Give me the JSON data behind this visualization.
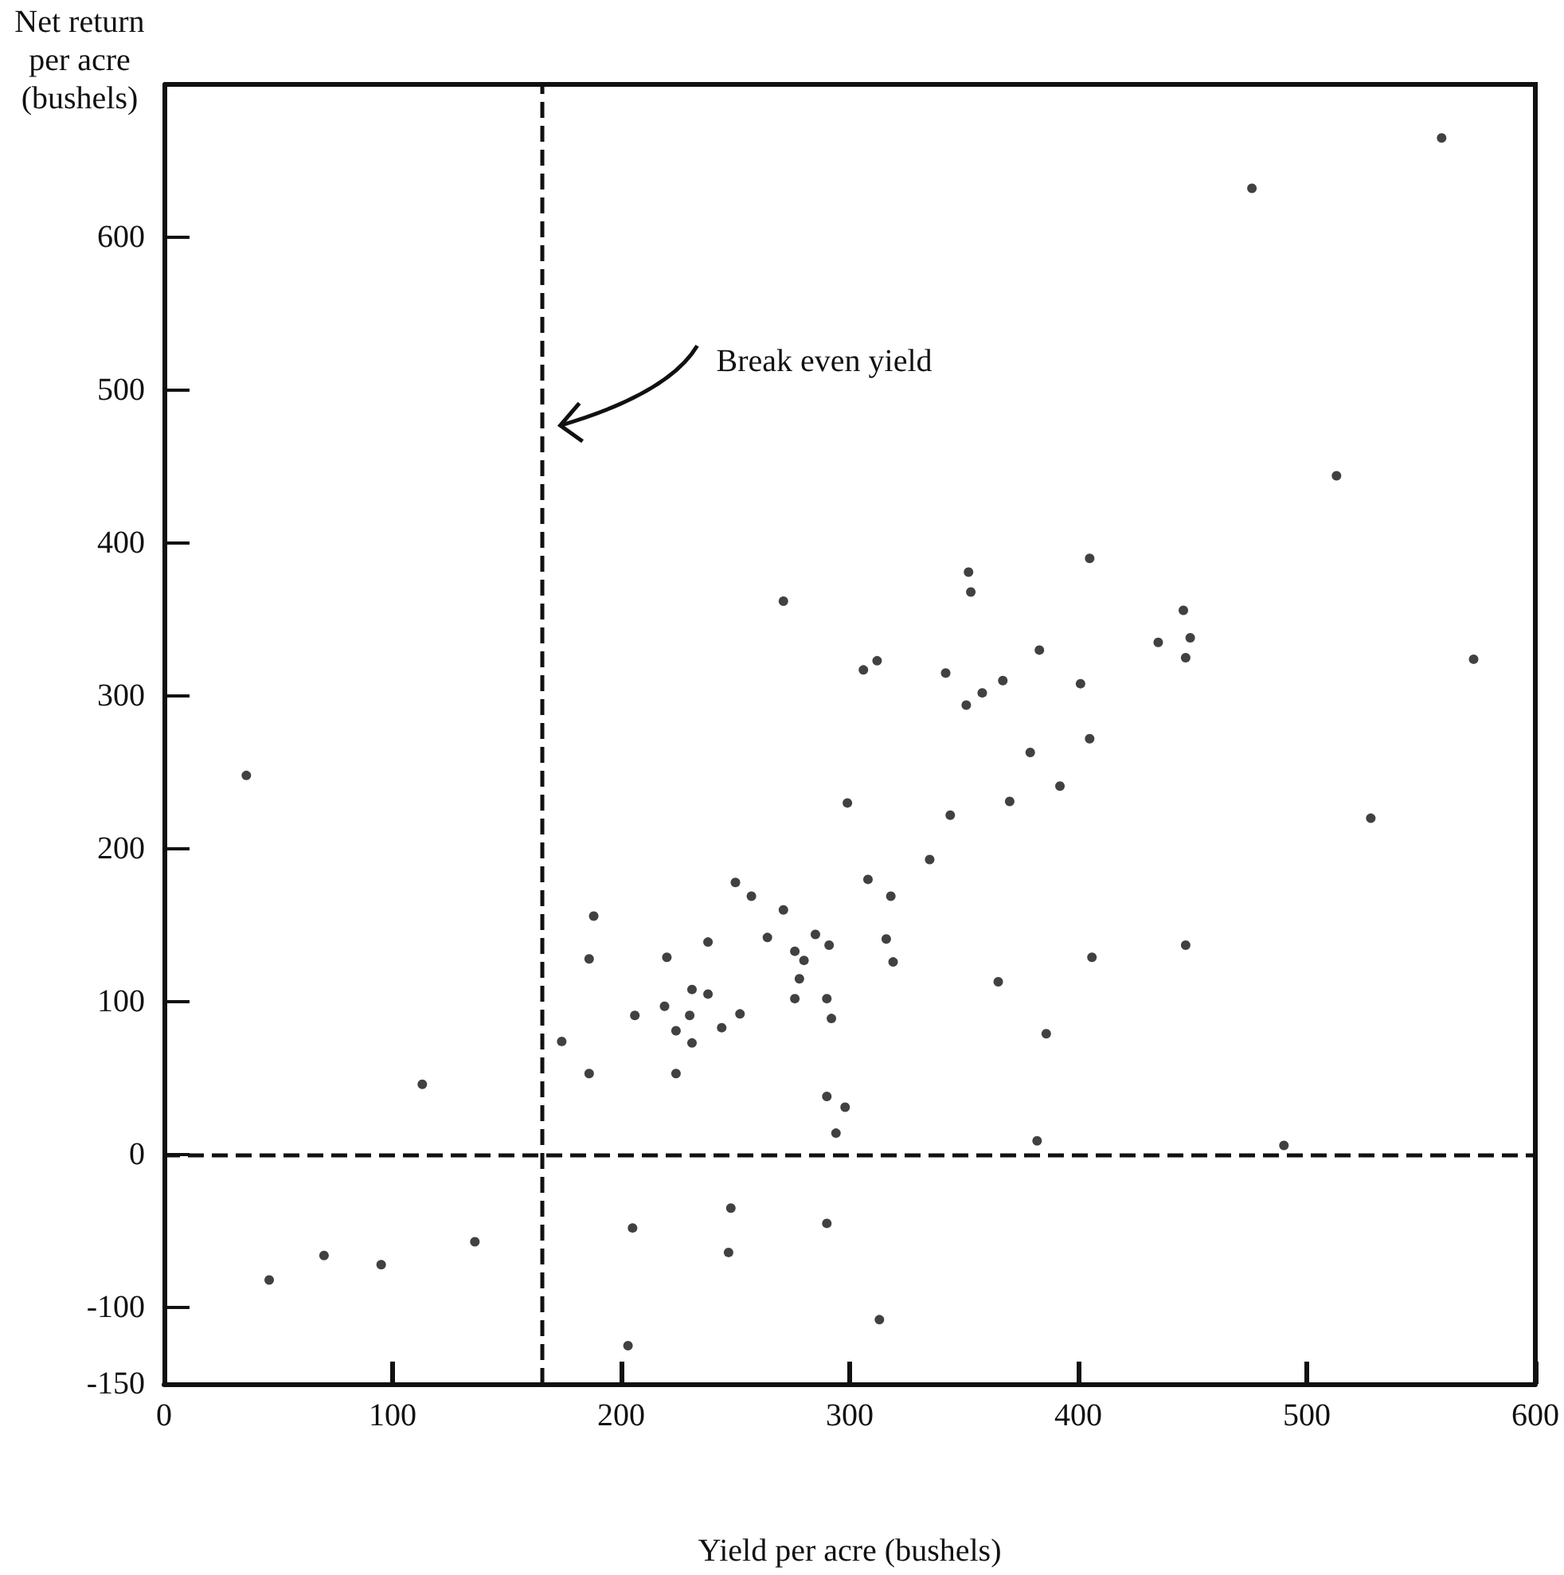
{
  "chart_data": {
    "type": "scatter",
    "xlabel": "Yield per acre (bushels)",
    "ylabel": "Net return per acre (bushels)",
    "xlim": [
      0,
      600
    ],
    "xticks": [
      0,
      100,
      200,
      300,
      400,
      500,
      600
    ],
    "ylim": [
      -150,
      700
    ],
    "yticks": [
      -150,
      -100,
      0,
      100,
      200,
      300,
      400,
      500,
      600
    ],
    "grid": false,
    "marker": "circle",
    "series": [
      {
        "color": "#111111",
        "x": [
          36,
          113,
          46,
          70,
          95,
          136,
          174,
          186,
          188,
          186,
          206,
          219,
          220,
          231,
          238,
          230,
          224,
          231,
          224,
          244,
          252,
          238,
          250,
          257,
          264,
          271,
          285,
          291,
          276,
          280,
          278,
          276,
          290,
          292,
          299,
          290,
          298,
          294,
          248,
          247,
          205,
          290,
          203,
          351,
          379,
          405,
          392,
          344,
          370,
          335,
          308,
          318,
          316,
          319,
          365,
          406,
          447,
          386,
          382,
          490,
          313,
          528,
          559,
          476,
          513,
          573,
          353,
          352,
          405,
          383,
          342,
          367,
          358,
          401,
          306,
          312,
          446,
          449,
          447,
          435,
          271
        ],
        "values": [
          248,
          46,
          -82,
          -66,
          -72,
          -57,
          74,
          128,
          156,
          53,
          91,
          97,
          129,
          108,
          105,
          91,
          81,
          73,
          53,
          83,
          92,
          139,
          178,
          169,
          142,
          160,
          144,
          137,
          133,
          127,
          115,
          102,
          102,
          89,
          230,
          38,
          31,
          14,
          -35,
          -64,
          -48,
          -45,
          -125,
          294,
          263,
          272,
          241,
          222,
          231,
          193,
          180,
          169,
          141,
          126,
          113,
          129,
          137,
          79,
          9,
          6,
          -108,
          220,
          665,
          632,
          444,
          324,
          368,
          381,
          390,
          330,
          315,
          310,
          302,
          308,
          317,
          323,
          356,
          338,
          325,
          335,
          362
        ]
      }
    ],
    "ref_lines": [
      {
        "axis": "x",
        "value": 165,
        "label": "Break even yield",
        "line_style": "dashed",
        "color": "#111111"
      },
      {
        "axis": "y",
        "value": 0,
        "line_style": "dashed",
        "color": "#111111"
      }
    ]
  }
}
